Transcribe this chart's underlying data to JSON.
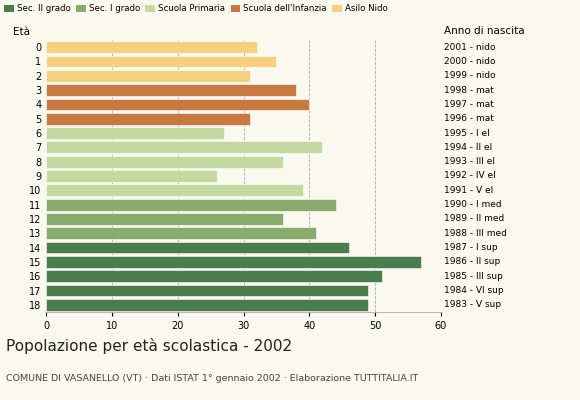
{
  "ages": [
    18,
    17,
    16,
    15,
    14,
    13,
    12,
    11,
    10,
    9,
    8,
    7,
    6,
    5,
    4,
    3,
    2,
    1,
    0
  ],
  "values": [
    49,
    49,
    51,
    57,
    46,
    41,
    36,
    44,
    39,
    26,
    36,
    42,
    27,
    31,
    40,
    38,
    31,
    35,
    32
  ],
  "right_labels": [
    "1983 - V sup",
    "1984 - VI sup",
    "1985 - III sup",
    "1986 - II sup",
    "1987 - I sup",
    "1988 - III med",
    "1989 - II med",
    "1990 - I med",
    "1991 - V el",
    "1992 - IV el",
    "1993 - III el",
    "1994 - II el",
    "1995 - I el",
    "1996 - mat",
    "1997 - mat",
    "1998 - mat",
    "1999 - nido",
    "2000 - nido",
    "2001 - nido"
  ],
  "colors": {
    "18": "#4a7c4e",
    "17": "#4a7c4e",
    "16": "#4a7c4e",
    "15": "#4a7c4e",
    "14": "#4a7c4e",
    "13": "#8aab6e",
    "12": "#8aab6e",
    "11": "#8aab6e",
    "10": "#c4d9a0",
    "9": "#c4d9a0",
    "8": "#c4d9a0",
    "7": "#c4d9a0",
    "6": "#c4d9a0",
    "5": "#c87941",
    "4": "#c87941",
    "3": "#c87941",
    "2": "#f5d080",
    "1": "#f5d080",
    "0": "#f5d080"
  },
  "legend_labels": [
    "Sec. II grado",
    "Sec. I grado",
    "Scuola Primaria",
    "Scuola dell'Infanzia",
    "Asilo Nido"
  ],
  "legend_colors": [
    "#4a7c4e",
    "#8aab6e",
    "#c4d9a0",
    "#c87941",
    "#f5d080"
  ],
  "title": "Popolazione per età scolastica - 2002",
  "subtitle": "COMUNE DI VASANELLO (VT) · Dati ISTAT 1° gennaio 2002 · Elaborazione TUTTITALIA.IT",
  "label_eta": "Età",
  "label_anno": "Anno di nascita",
  "xlim": [
    0,
    60
  ],
  "xticks": [
    0,
    10,
    20,
    30,
    40,
    50,
    60
  ],
  "bg_color": "#f9f9f0"
}
